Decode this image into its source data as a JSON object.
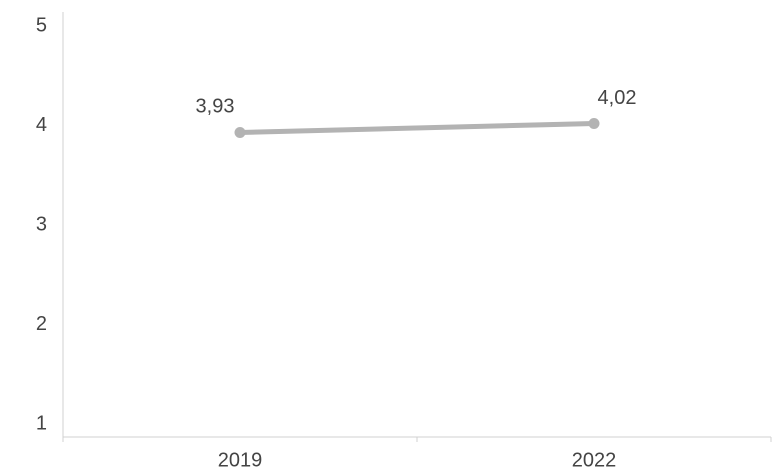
{
  "chart_data": {
    "type": "line",
    "title": "",
    "xlabel": "",
    "ylabel": "",
    "categories": [
      "2019",
      "2022"
    ],
    "series": [
      {
        "values": [
          3.93,
          4.02
        ],
        "data_labels": [
          "3,93",
          "4,02"
        ]
      }
    ],
    "ylim": [
      1,
      5
    ],
    "y_ticks": [
      "1",
      "2",
      "3",
      "4",
      "5"
    ],
    "grid": false,
    "legend": "none",
    "colors": {
      "line": "#b3b3b3",
      "axis": "#d0d0d0",
      "text": "#444444"
    }
  }
}
